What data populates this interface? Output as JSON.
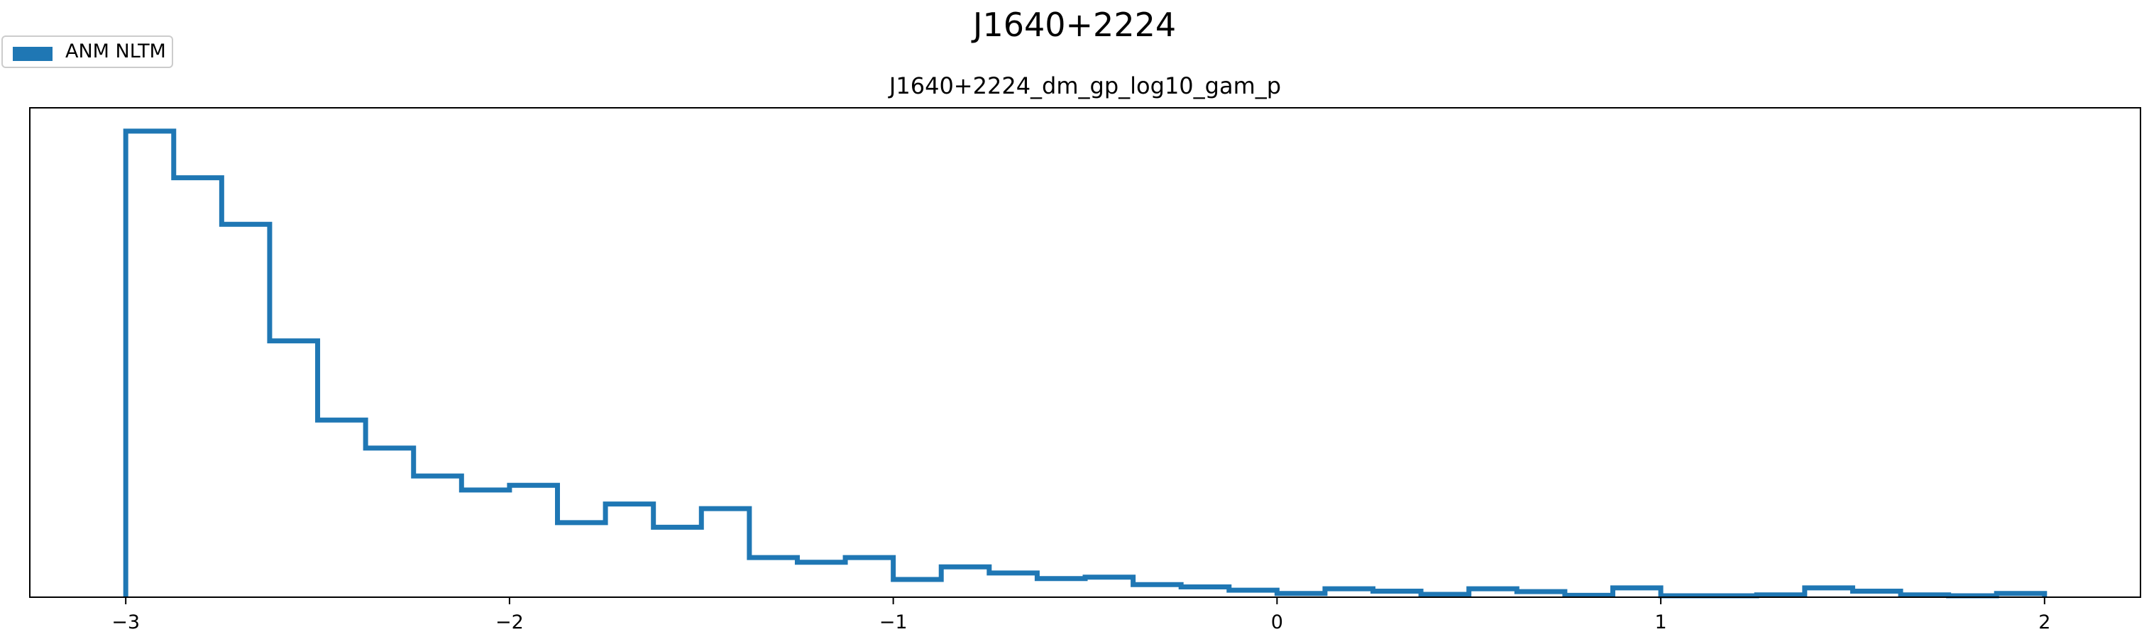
{
  "figure": {
    "suptitle": "J1640+2224"
  },
  "legend": {
    "entries": [
      {
        "label": "ANM NLTM",
        "color": "#1f77b4"
      }
    ],
    "placement": "upper-left (figure)"
  },
  "chart_data": {
    "type": "histogram",
    "title": "J1640+2224_dm_gp_log10_gam_p",
    "xlabel": "",
    "ylabel": "",
    "xlim": [
      -3.25,
      2.25
    ],
    "ylim": [
      0,
      1.05
    ],
    "xticks": [
      -3,
      -2,
      -1,
      0,
      1,
      2
    ],
    "xtick_labels": [
      "−3",
      "−2",
      "−1",
      "0",
      "1",
      "2"
    ],
    "yticks": [],
    "grid": false,
    "histtype": "step",
    "bin_edges": [
      -3.0,
      -2.875,
      -2.75,
      -2.625,
      -2.5,
      -2.375,
      -2.25,
      -2.125,
      -2.0,
      -1.875,
      -1.75,
      -1.625,
      -1.5,
      -1.375,
      -1.25,
      -1.125,
      -1.0,
      -0.875,
      -0.75,
      -0.625,
      -0.5,
      -0.375,
      -0.25,
      -0.125,
      0.0,
      0.125,
      0.25,
      0.375,
      0.5,
      0.625,
      0.75,
      0.875,
      1.0,
      1.125,
      1.25,
      1.375,
      1.5,
      1.625,
      1.75,
      1.875,
      2.0
    ],
    "series": [
      {
        "name": "ANM NLTM",
        "color": "#1f77b4",
        "values": [
          1.0,
          0.9,
          0.8,
          0.55,
          0.38,
          0.32,
          0.26,
          0.23,
          0.24,
          0.16,
          0.2,
          0.15,
          0.19,
          0.085,
          0.075,
          0.085,
          0.038,
          0.065,
          0.052,
          0.04,
          0.043,
          0.027,
          0.022,
          0.015,
          0.008,
          0.018,
          0.013,
          0.006,
          0.018,
          0.012,
          0.004,
          0.02,
          0.003,
          0.003,
          0.005,
          0.02,
          0.013,
          0.005,
          0.003,
          0.008
        ]
      }
    ]
  }
}
